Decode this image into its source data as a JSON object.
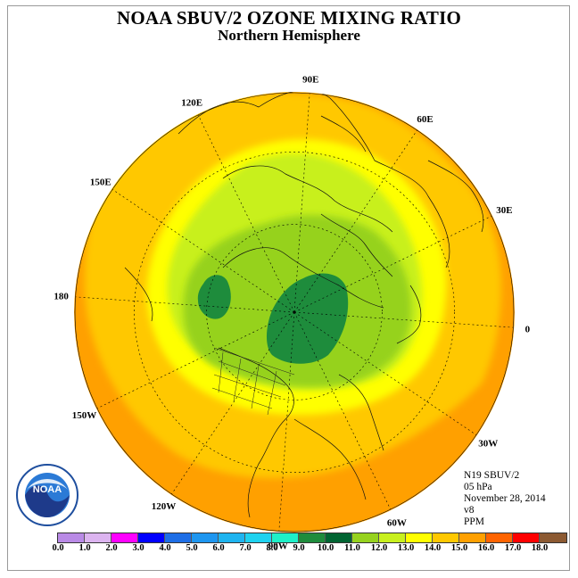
{
  "title": "NOAA SBUV/2 OZONE MIXING RATIO",
  "subtitle": "Northern Hemisphere",
  "longitude_labels": [
    "0",
    "30E",
    "60E",
    "90E",
    "120E",
    "150E",
    "180",
    "150W",
    "120W",
    "90W",
    "60W",
    "30W"
  ],
  "info": {
    "satellite": "N19 SBUV/2",
    "pressure": "05 hPa",
    "date": "November 28, 2014",
    "version": "v8",
    "units": "PPM"
  },
  "logo_text": "NOAA",
  "colorbar": {
    "ticks": [
      "0.0",
      "1.0",
      "2.0",
      "3.0",
      "4.0",
      "5.0",
      "6.0",
      "7.0",
      "8.0",
      "9.0",
      "10.0",
      "11.0",
      "12.0",
      "13.0",
      "14.0",
      "15.0",
      "16.0",
      "17.0",
      "18.0"
    ],
    "colors": [
      "#b98ae6",
      "#dcb4f0",
      "#ff00ff",
      "#0000ff",
      "#1e6ee6",
      "#1e96f0",
      "#1eb4f0",
      "#1ed2f0",
      "#1ef0c8",
      "#1e8c3c",
      "#006432",
      "#96d21e",
      "#c8f01e",
      "#ffff00",
      "#ffc800",
      "#ffa000",
      "#ff6400",
      "#ff0000",
      "#8c5a32"
    ]
  },
  "chart_data": {
    "type": "map",
    "projection": "north polar stereographic",
    "variable": "ozone mixing ratio",
    "units": "PPM",
    "color_scale_range": [
      0.0,
      18.0
    ]
  }
}
